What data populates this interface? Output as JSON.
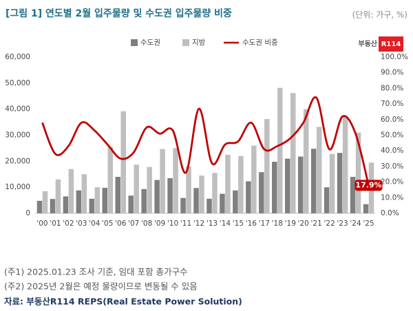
{
  "chart_data": {
    "type": "bar-line",
    "title": "[그림 1] 연도별 2월 입주물량 및 수도권 입주물량 비중",
    "subtitle": "(단위: 가구, %)",
    "categories": [
      "'00",
      "'01",
      "'02",
      "'03",
      "'04",
      "'05",
      "'06",
      "'07",
      "'08",
      "'09",
      "'10",
      "'11",
      "'12",
      "'13",
      "'14",
      "'15",
      "'16",
      "'17",
      "'18",
      "'19",
      "'20",
      "'21",
      "'22",
      "'23",
      "'24",
      "'25"
    ],
    "series": [
      {
        "name": "수도권",
        "type": "bar",
        "color": "#7f7f7f",
        "values": [
          4800,
          5500,
          6500,
          8800,
          5600,
          9800,
          14000,
          6800,
          9300,
          12800,
          13500,
          5900,
          9700,
          5600,
          7500,
          8800,
          12300,
          15800,
          19800,
          21000,
          21800,
          24800,
          10000,
          23200,
          14000,
          3500
        ]
      },
      {
        "name": "지방",
        "type": "bar",
        "color": "#bfbfbf",
        "values": [
          8500,
          13000,
          17000,
          15000,
          10000,
          25500,
          39200,
          18700,
          17800,
          24700,
          25000,
          18000,
          14500,
          15500,
          22500,
          22000,
          26000,
          36200,
          48200,
          46200,
          40000,
          33200,
          22800,
          37200,
          31000,
          19500
        ]
      },
      {
        "name": "수도권 비중",
        "type": "line",
        "axis": "y2",
        "color": "#c00000",
        "values": [
          58,
          38,
          43,
          58,
          53,
          44,
          35,
          39,
          55,
          51,
          53,
          26,
          67,
          32,
          44,
          46,
          58,
          41,
          43,
          48,
          58,
          74,
          41,
          62,
          51,
          17.9
        ],
        "value_labels": [
          null,
          null,
          null,
          null,
          null,
          null,
          null,
          null,
          null,
          null,
          null,
          null,
          null,
          null,
          null,
          null,
          null,
          null,
          null,
          null,
          null,
          null,
          null,
          null,
          null,
          "17.9%"
        ]
      }
    ],
    "ylim": [
      0,
      60000
    ],
    "yticks": [
      0,
      {
        "value": 10000,
        "label": "10,000"
      },
      {
        "value": 20000,
        "label": "20,000"
      },
      {
        "value": 30000,
        "label": "30,000"
      },
      {
        "value": 40000,
        "label": "40,000"
      },
      {
        "value": 50000,
        "label": "50,000"
      },
      {
        "value": 60000,
        "label": "60,000"
      }
    ],
    "y2lim": [
      0,
      100
    ],
    "y2ticks": [
      {
        "value": 0,
        "label": "0.0%"
      },
      {
        "value": 10,
        "label": "10.0%"
      },
      {
        "value": 20,
        "label": "20.0%"
      },
      {
        "value": 30,
        "label": "30.0%"
      },
      {
        "value": 40,
        "label": "40.0%"
      },
      {
        "value": 50,
        "label": "50.0%"
      },
      {
        "value": 60,
        "label": "60.0%"
      },
      {
        "value": 70,
        "label": "70.0%"
      },
      {
        "value": 80,
        "label": "80.0%"
      },
      {
        "value": 90,
        "label": "90.0%"
      },
      {
        "value": 100,
        "label": "100.0%"
      }
    ],
    "grid": false,
    "legend": "top"
  },
  "logo": {
    "text": "부동산",
    "badge": "R114"
  },
  "notes": [
    "(주1) 2025.01.23 조사 기준, 임대 포함 총가구수",
    "(주2) 2025년 2월은 예정 물량이므로 변동될 수 있음"
  ],
  "source": "자료: 부동산R114 REPS(Real Estate Power Solution)"
}
